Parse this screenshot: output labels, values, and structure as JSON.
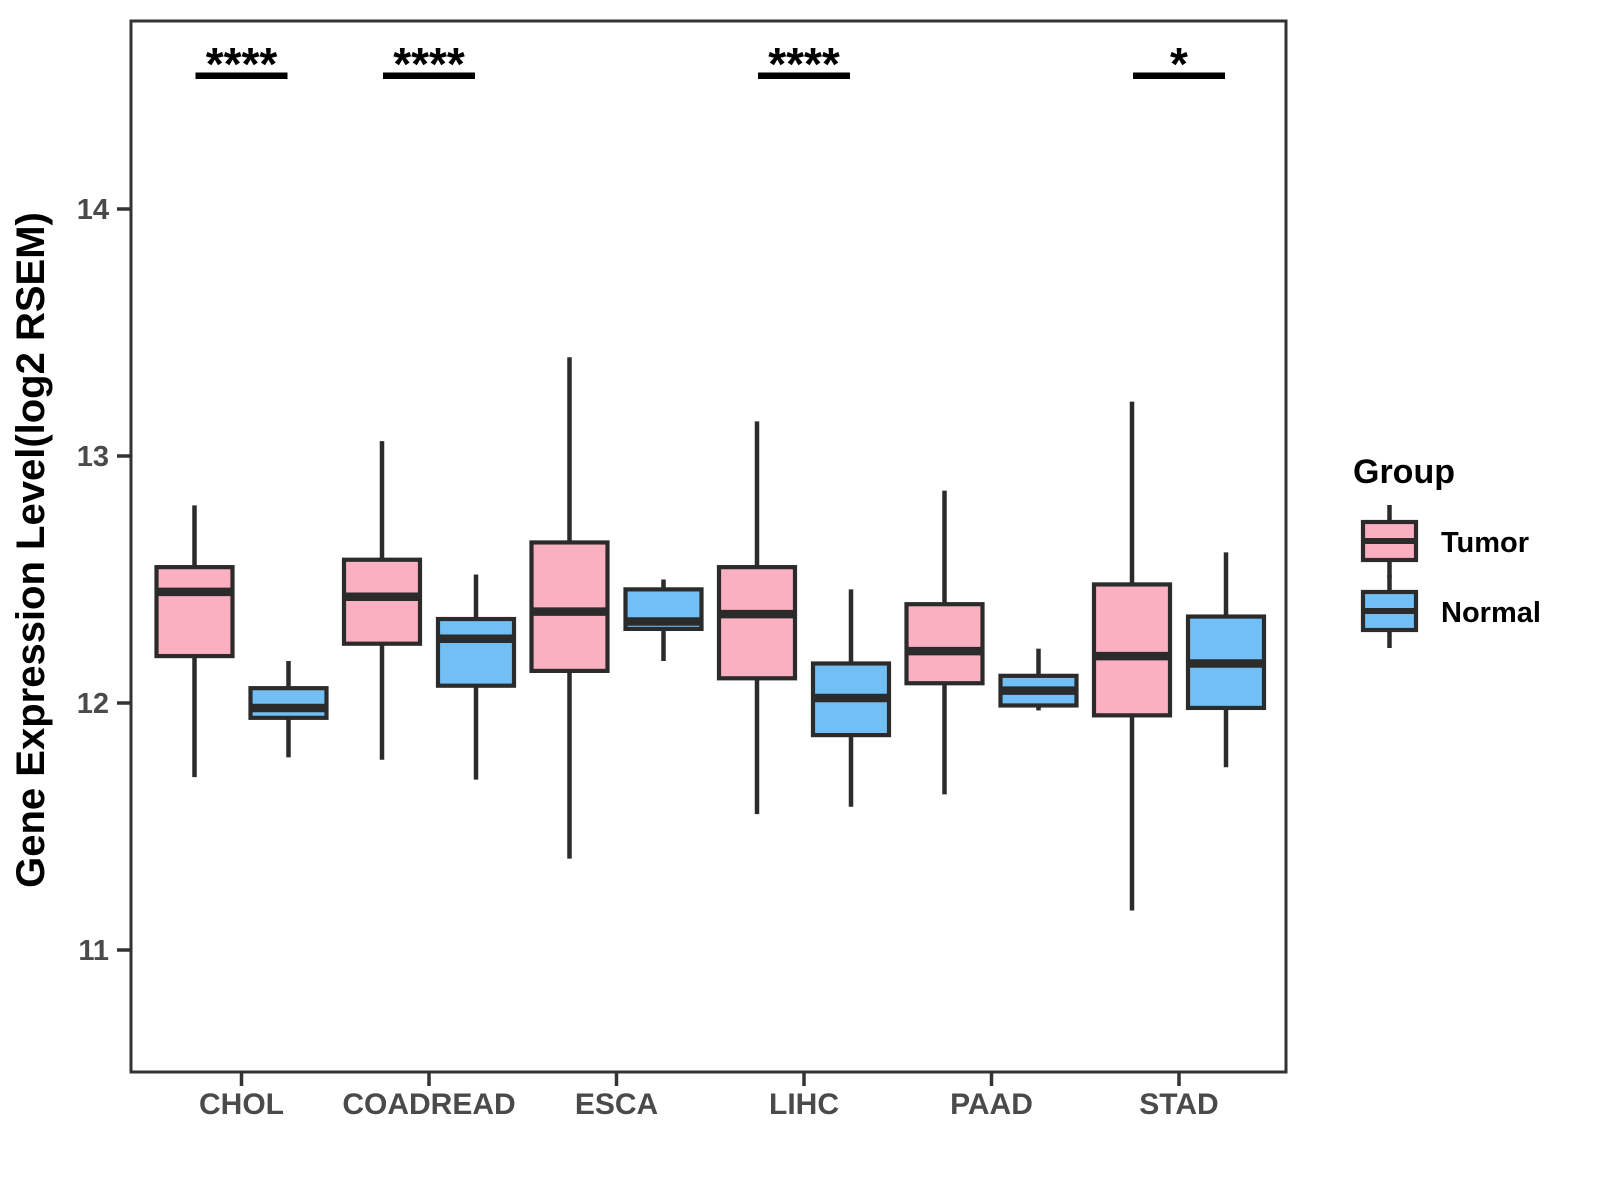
{
  "chart_data": {
    "type": "boxplot",
    "title": "",
    "xlabel": "",
    "ylabel": "Gene Expression Level(log2 RSEM)",
    "ylim": [
      10.5,
      14.77
    ],
    "yticks": [
      11,
      12,
      13,
      14
    ],
    "grid": false,
    "categories": [
      "CHOL",
      "COADREAD",
      "ESCA",
      "LIHC",
      "PAAD",
      "STAD"
    ],
    "series": [
      {
        "name": "Tumor",
        "color": "#FAB0C1",
        "boxes": [
          {
            "min": 11.7,
            "q1": 12.19,
            "median": 12.45,
            "q3": 12.55,
            "max": 12.8
          },
          {
            "min": 11.77,
            "q1": 12.24,
            "median": 12.43,
            "q3": 12.58,
            "max": 13.06
          },
          {
            "min": 11.37,
            "q1": 12.13,
            "median": 12.37,
            "q3": 12.65,
            "max": 13.4
          },
          {
            "min": 11.55,
            "q1": 12.1,
            "median": 12.36,
            "q3": 12.55,
            "max": 13.14
          },
          {
            "min": 11.63,
            "q1": 12.08,
            "median": 12.21,
            "q3": 12.4,
            "max": 12.86
          },
          {
            "min": 11.16,
            "q1": 11.95,
            "median": 12.19,
            "q3": 12.48,
            "max": 13.22
          }
        ]
      },
      {
        "name": "Normal",
        "color": "#72BFF5",
        "boxes": [
          {
            "min": 11.78,
            "q1": 11.94,
            "median": 11.98,
            "q3": 12.06,
            "max": 12.17
          },
          {
            "min": 11.69,
            "q1": 12.07,
            "median": 12.26,
            "q3": 12.34,
            "max": 12.52
          },
          {
            "min": 12.17,
            "q1": 12.3,
            "median": 12.33,
            "q3": 12.46,
            "max": 12.5
          },
          {
            "min": 11.58,
            "q1": 11.87,
            "median": 12.02,
            "q3": 12.16,
            "max": 12.46
          },
          {
            "min": 11.97,
            "q1": 11.99,
            "median": 12.05,
            "q3": 12.11,
            "max": 12.22
          },
          {
            "min": 11.74,
            "q1": 11.98,
            "median": 12.16,
            "q3": 12.35,
            "max": 12.61
          }
        ]
      }
    ],
    "annotations": [
      {
        "category": "CHOL",
        "label": "****"
      },
      {
        "category": "COADREAD",
        "label": "****"
      },
      {
        "category": "LIHC",
        "label": "****"
      },
      {
        "category": "STAD",
        "label": "*"
      }
    ],
    "legend": {
      "title": "Group",
      "position": "right",
      "items": [
        {
          "label": "Tumor",
          "color": "#FAB0C1"
        },
        {
          "label": "Normal",
          "color": "#72BFF5"
        }
      ]
    },
    "colors": {
      "box_border": "#2B2B2B",
      "panel_border": "#333333",
      "tick": "#333333",
      "annotation": "#000000"
    }
  }
}
